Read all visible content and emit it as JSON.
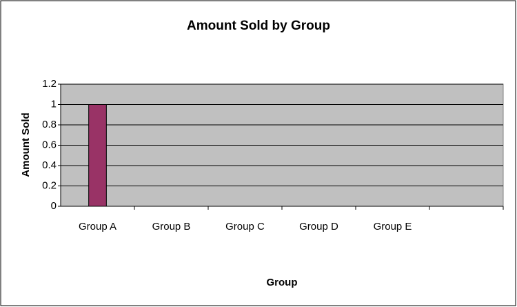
{
  "chart_data": {
    "type": "bar",
    "title": "Amount Sold by Group",
    "x_label": "Group",
    "y_label": "Amount Sold",
    "categories": [
      "Group A",
      "Group B",
      "Group C",
      "Group D",
      "Group E",
      null
    ],
    "values": [
      1,
      0,
      0,
      0,
      0,
      null
    ],
    "color": "#993366",
    "ylim": [
      0,
      1.2
    ],
    "yticks": [
      0,
      0.2,
      0.4,
      0.6,
      0.8,
      1,
      1.2
    ],
    "grid": true
  }
}
